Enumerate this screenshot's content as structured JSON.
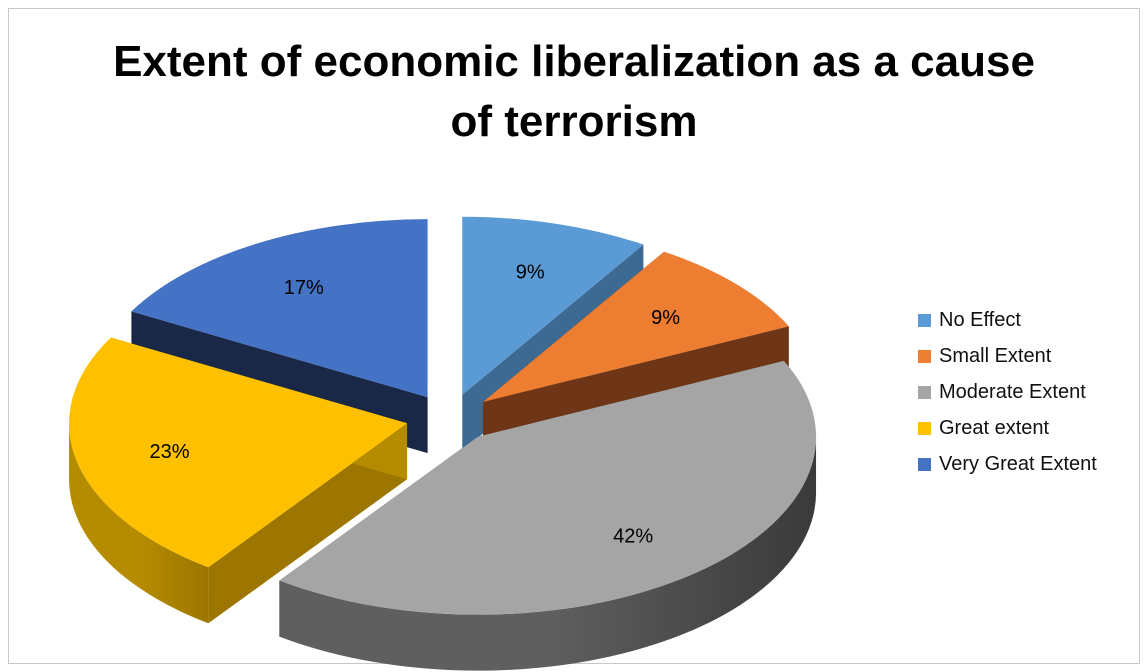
{
  "chart_data": {
    "type": "pie",
    "style": "3d-exploded",
    "title": "Extent of economic liberalization as a cause\nof terrorism",
    "legend_position": "right",
    "slices": [
      {
        "name": "No Effect",
        "value": 9,
        "label": "9%",
        "color": "#5B9BD5",
        "side_color": "#3D6A93",
        "dark_color": "#2E5275"
      },
      {
        "name": "Small Extent",
        "value": 9,
        "label": "9%",
        "color": "#ED7D31",
        "side_color": "#6E3616",
        "dark_color": "#5A2C12"
      },
      {
        "name": "Moderate Extent",
        "value": 42,
        "label": "42%",
        "color": "#A5A5A5",
        "side_color": "#5F5F5F",
        "dark_color": "#3A3A3A"
      },
      {
        "name": "Great extent",
        "value": 23,
        "label": "23%",
        "color": "#FFC000",
        "side_color": "#B58B00",
        "dark_color": "#9C7600"
      },
      {
        "name": "Very Great Extent",
        "value": 17,
        "label": "17%",
        "color": "#4472C4",
        "side_color": "#22345B",
        "dark_color": "#1A2847"
      }
    ]
  }
}
